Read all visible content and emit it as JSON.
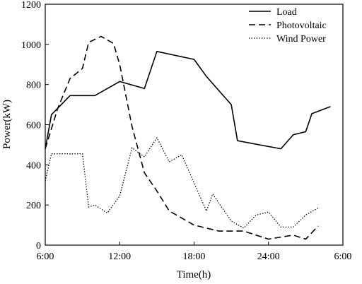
{
  "chart_data": {
    "type": "line",
    "xlabel": "Time(h)",
    "ylabel": "Power(kW)",
    "xlim": [
      6,
      30
    ],
    "ylim": [
      0,
      1200
    ],
    "x_ticks": [
      6,
      12,
      18,
      24,
      30
    ],
    "x_tick_labels": [
      "6:00",
      "12:00",
      "18:00",
      "24:00",
      "6:00"
    ],
    "y_ticks": [
      0,
      200,
      400,
      600,
      800,
      1000,
      1200
    ],
    "y_tick_labels": [
      "0",
      "200",
      "400",
      "600",
      "800",
      "1000",
      "1200"
    ],
    "grid": false,
    "legend_position": "top-right",
    "series": [
      {
        "name": "Load",
        "dash": "solid",
        "points": [
          [
            6,
            480
          ],
          [
            6.5,
            650
          ],
          [
            8,
            745
          ],
          [
            10,
            745
          ],
          [
            12,
            815
          ],
          [
            14,
            780
          ],
          [
            15,
            965
          ],
          [
            18,
            925
          ],
          [
            19,
            840
          ],
          [
            21,
            700
          ],
          [
            21.5,
            520
          ],
          [
            25,
            480
          ],
          [
            26,
            550
          ],
          [
            27,
            565
          ],
          [
            27.5,
            655
          ],
          [
            29,
            690
          ]
        ]
      },
      {
        "name": "Photovoltaic",
        "dash": "dashed",
        "points": [
          [
            6,
            480
          ],
          [
            7,
            680
          ],
          [
            8,
            830
          ],
          [
            9,
            880
          ],
          [
            9.5,
            1010
          ],
          [
            10.5,
            1040
          ],
          [
            11.5,
            1005
          ],
          [
            12,
            900
          ],
          [
            13,
            590
          ],
          [
            14,
            360
          ],
          [
            15,
            270
          ],
          [
            16,
            170
          ],
          [
            18,
            100
          ],
          [
            20,
            70
          ],
          [
            22,
            70
          ],
          [
            24,
            30
          ],
          [
            26,
            50
          ],
          [
            27,
            30
          ],
          [
            28,
            95
          ]
        ]
      },
      {
        "name": "Wind Power",
        "dash": "dotted",
        "points": [
          [
            6,
            320
          ],
          [
            6.5,
            455
          ],
          [
            8,
            455
          ],
          [
            9,
            455
          ],
          [
            9.5,
            190
          ],
          [
            10,
            200
          ],
          [
            11,
            160
          ],
          [
            12,
            245
          ],
          [
            13,
            485
          ],
          [
            14,
            440
          ],
          [
            15,
            535
          ],
          [
            16,
            415
          ],
          [
            17,
            450
          ],
          [
            18,
            310
          ],
          [
            19,
            170
          ],
          [
            19.5,
            255
          ],
          [
            21,
            120
          ],
          [
            22,
            85
          ],
          [
            23,
            150
          ],
          [
            24,
            165
          ],
          [
            25,
            90
          ],
          [
            26,
            90
          ],
          [
            27,
            150
          ],
          [
            28,
            185
          ]
        ]
      }
    ]
  }
}
